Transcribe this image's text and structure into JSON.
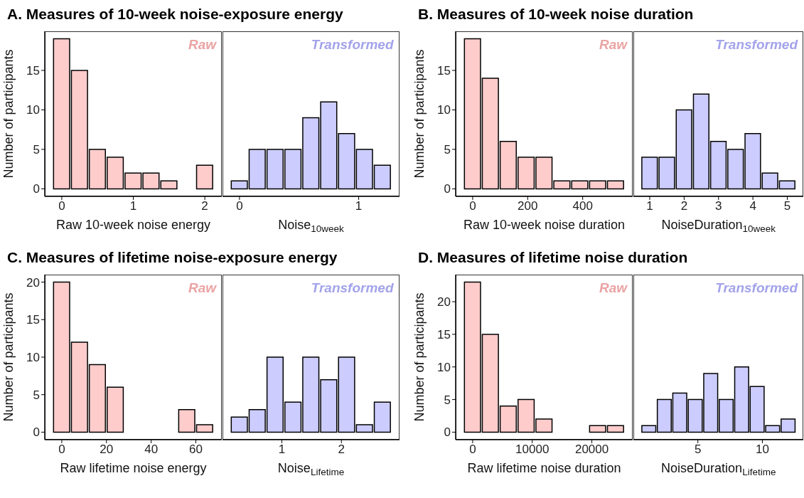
{
  "chart_data": [
    {
      "type": "histogram",
      "title": "A. Measures of 10-week noise-exposure energy",
      "xlabel": "Raw 10-week noise energy",
      "ylabel": "Number of participants",
      "bins": [
        -0.125,
        0.125,
        0.375,
        0.625,
        0.875,
        1.125,
        1.375,
        1.625,
        1.875,
        2.125
      ],
      "values": [
        19,
        15,
        5,
        4,
        2,
        2,
        1,
        0,
        3
      ],
      "color": "#ffcccc",
      "xlim": [
        -0.2375,
        2.2375
      ],
      "xticks": [
        0,
        1,
        2
      ],
      "ylim": [
        -0.95,
        19.95
      ],
      "yticks": [
        0,
        5,
        10,
        15
      ],
      "annotations": [
        "Raw"
      ]
    },
    {
      "type": "histogram",
      "xlabel": "Noise$_{10week}$",
      "bins": [
        -0.075,
        0.075,
        0.225,
        0.375,
        0.525,
        0.675,
        0.825,
        0.975,
        1.125,
        1.275
      ],
      "values": [
        1,
        5,
        5,
        5,
        9,
        11,
        7,
        5,
        3
      ],
      "color": "#ccccff",
      "xlim": [
        -0.1425,
        1.3425
      ],
      "xticks": [
        0,
        1
      ],
      "ylim": [
        -0.95,
        19.95
      ],
      "yticks": [
        0,
        5,
        10,
        15
      ],
      "tick_labels": "x",
      "annotations": [
        "Transformed"
      ]
    },
    {
      "type": "histogram",
      "title": "B. Measures of 10-week noise duration",
      "xlabel": "Raw 10-week noise duration",
      "ylabel": "Number of participants",
      "bins": [
        -32.5,
        32.5,
        97.5,
        162.5,
        227.5,
        292.5,
        357.5,
        422.5,
        487.5,
        552.5
      ],
      "values": [
        19,
        14,
        6,
        4,
        4,
        1,
        1,
        1,
        1
      ],
      "color": "#ffcccc",
      "xlim": [
        -61.75,
        581.75
      ],
      "xticks": [
        0,
        200,
        400
      ],
      "ylim": [
        -0.95,
        19.95
      ],
      "yticks": [
        0,
        5,
        10,
        15
      ],
      "annotations": [
        "Raw"
      ]
    },
    {
      "type": "histogram",
      "xlabel": "NoiseDuration$_{10week}$",
      "bins": [
        0.75,
        1.25,
        1.75,
        2.25,
        2.75,
        3.25,
        3.75,
        4.25,
        4.75,
        5.25
      ],
      "values": [
        4,
        4,
        10,
        12,
        6,
        5,
        7,
        2,
        1
      ],
      "color": "#ccccff",
      "xlim": [
        0.525,
        5.475
      ],
      "xticks": [
        1,
        2,
        3,
        4,
        5
      ],
      "ylim": [
        -0.95,
        19.95
      ],
      "yticks": [
        0,
        5,
        10,
        15
      ],
      "tick_labels": "x",
      "annotations": [
        "Transformed"
      ]
    },
    {
      "type": "histogram",
      "title": "C. Measures of lifetime noise-exposure energy",
      "xlabel": "Raw lifetime noise energy",
      "ylabel": "Number of participants",
      "bins": [
        -4,
        4,
        12,
        20,
        28,
        36,
        44,
        52,
        60,
        68
      ],
      "values": [
        20,
        12,
        9,
        6,
        0,
        0,
        0,
        3,
        1
      ],
      "color": "#ffcccc",
      "xlim": [
        -7.6,
        71.6
      ],
      "xticks": [
        0,
        20,
        40,
        60
      ],
      "ylim": [
        -1,
        21
      ],
      "yticks": [
        0,
        5,
        10,
        15,
        20
      ],
      "annotations": [
        "Raw"
      ]
    },
    {
      "type": "histogram",
      "xlabel": "Noise$_{Lifetime}$",
      "bins": [
        0.14,
        0.44,
        0.74,
        1.04,
        1.34,
        1.64,
        1.94,
        2.24,
        2.54,
        2.84
      ],
      "values": [
        2,
        3,
        10,
        4,
        10,
        7,
        10,
        1,
        4
      ],
      "color": "#ccccff",
      "xlim": [
        0.005,
        2.975
      ],
      "xticks": [
        1,
        2
      ],
      "ylim": [
        -1,
        21
      ],
      "yticks": [
        0,
        5,
        10,
        15,
        20
      ],
      "tick_labels": "x",
      "annotations": [
        "Transformed"
      ]
    },
    {
      "type": "histogram",
      "title": "D. Measures of lifetime noise duration",
      "xlabel": "Raw lifetime noise duration",
      "ylabel": "Number of participants",
      "bins": [
        -1500,
        1500,
        4500,
        7500,
        10500,
        13500,
        16500,
        19500,
        22500,
        25500
      ],
      "values": [
        23,
        15,
        4,
        5,
        2,
        0,
        0,
        1,
        1
      ],
      "color": "#ffcccc",
      "xlim": [
        -2850,
        26850
      ],
      "xticks": [
        0,
        10000,
        20000
      ],
      "ylim": [
        -1.15,
        24.15
      ],
      "yticks": [
        0,
        5,
        10,
        15,
        20
      ],
      "annotations": [
        "Raw"
      ]
    },
    {
      "type": "histogram",
      "xlabel": "NoiseDuration$_{Lifetime}$",
      "bins": [
        0.6,
        1.8,
        3,
        4.2,
        5.4,
        6.6,
        7.8,
        9,
        10.2,
        11.4,
        12.6
      ],
      "values": [
        1,
        5,
        6,
        5,
        9,
        5,
        10,
        7,
        1,
        2
      ],
      "color": "#ccccff",
      "xlim": [
        0,
        13.2
      ],
      "xticks": [
        5,
        10
      ],
      "ylim": [
        -1.15,
        24.15
      ],
      "yticks": [
        0,
        5,
        10,
        15,
        20
      ],
      "tick_labels": "x",
      "annotations": [
        "Transformed"
      ]
    }
  ]
}
